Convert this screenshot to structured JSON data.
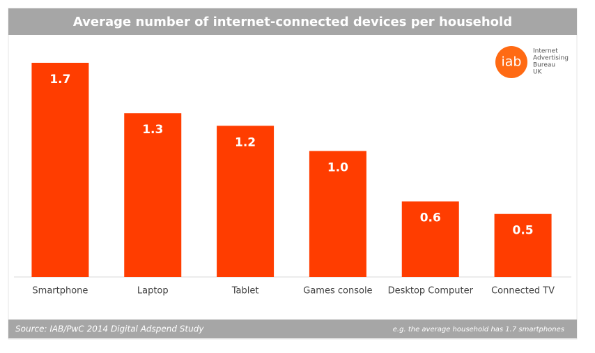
{
  "chart_data": {
    "type": "bar",
    "title": "Average number of internet-connected devices per household",
    "categories": [
      "Smartphone",
      "Laptop",
      "Tablet",
      "Games console",
      "Desktop Computer",
      "Connected TV"
    ],
    "values": [
      1.7,
      1.3,
      1.2,
      1.0,
      0.6,
      0.5
    ],
    "value_labels": [
      "1.7",
      "1.3",
      "1.2",
      "1.0",
      "0.6",
      "0.5"
    ],
    "color": "#ff3d00",
    "ylim": [
      0,
      1.7
    ],
    "source": "Source: IAB/PwC 2014 Digital Adspend Study",
    "note": "e.g. the average household has 1.7 smartphones",
    "logo": {
      "mark": "iab",
      "lines": [
        "Internet",
        "Advertising",
        "Bureau",
        "UK"
      ]
    }
  }
}
